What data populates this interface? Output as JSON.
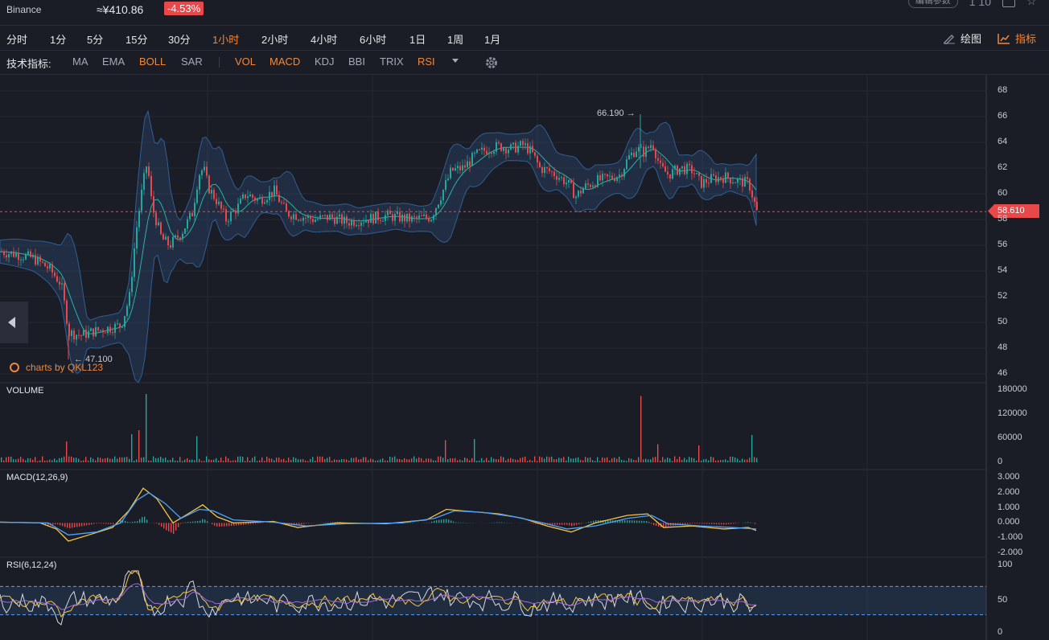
{
  "header": {
    "exchange": "Binance",
    "price": "≈¥410.86",
    "change": "-4.53%",
    "top_right_button": "编辑参数",
    "top_right_text": "1 10"
  },
  "timeframes": [
    {
      "label": "分时",
      "active": false
    },
    {
      "label": "1分",
      "active": false
    },
    {
      "label": "5分",
      "active": false
    },
    {
      "label": "15分",
      "active": false
    },
    {
      "label": "30分",
      "active": false
    },
    {
      "label": "1小时",
      "active": true
    },
    {
      "label": "2小时",
      "active": false
    },
    {
      "label": "4小时",
      "active": false
    },
    {
      "label": "6小时",
      "active": false
    },
    {
      "label": "1日",
      "active": false
    },
    {
      "label": "1周",
      "active": false
    },
    {
      "label": "1月",
      "active": false
    }
  ],
  "toolbar": {
    "draw_label": "绘图",
    "indicator_label": "指标"
  },
  "indicators": {
    "label": "技术指标:",
    "items": [
      {
        "label": "MA",
        "active": false
      },
      {
        "label": "EMA",
        "active": false
      },
      {
        "label": "BOLL",
        "active": true
      },
      {
        "label": "SAR",
        "active": false
      },
      {
        "label": "VOL",
        "active": true
      },
      {
        "label": "MACD",
        "active": true
      },
      {
        "label": "KDJ",
        "active": false
      },
      {
        "label": "BBI",
        "active": false
      },
      {
        "label": "TRIX",
        "active": false
      },
      {
        "label": "RSI",
        "active": true
      }
    ]
  },
  "icons": [
    "chevron-left-icon",
    "gear-icon",
    "pencil-icon",
    "line-chart-icon",
    "caret-down-icon",
    "watermark-logo-icon"
  ],
  "colors": {
    "accent": "#f0883c",
    "up": "#26a69a",
    "down": "#e9484a",
    "background": "#1b1d26"
  },
  "watermark": "charts by QKL123",
  "panels": {
    "volume": "VOLUME",
    "macd": "MACD(12,26,9)",
    "rsi": "RSI(6,12,24)"
  },
  "last_price": "58.610",
  "annotations": {
    "high": "66.190 →",
    "low": "← 47.100"
  },
  "chart_data": [
    {
      "type": "candlestick",
      "name": "price",
      "ylim": [
        46,
        68
      ],
      "yticks": [
        "68",
        "66",
        "64",
        "62",
        "60",
        "58",
        "56",
        "54",
        "52",
        "50",
        "48",
        "46"
      ],
      "high_marker": 66.19,
      "low_marker": 47.1,
      "last_price": 58.61,
      "indicator": "BOLL",
      "close_path": [
        [
          0,
          55.5
        ],
        [
          20,
          55.3
        ],
        [
          40,
          55.0
        ],
        [
          60,
          54.2
        ],
        [
          75,
          53.0
        ],
        [
          85,
          49.2
        ],
        [
          100,
          49.0
        ],
        [
          115,
          49.3
        ],
        [
          130,
          49.5
        ],
        [
          150,
          49.8
        ],
        [
          160,
          52.0
        ],
        [
          168,
          57.0
        ],
        [
          176,
          60.5
        ],
        [
          182,
          62.5
        ],
        [
          188,
          59.0
        ],
        [
          200,
          56.5
        ],
        [
          210,
          56.0
        ],
        [
          225,
          57.0
        ],
        [
          238,
          58.5
        ],
        [
          246,
          61.5
        ],
        [
          252,
          62.0
        ],
        [
          258,
          60.5
        ],
        [
          268,
          59.5
        ],
        [
          280,
          58.0
        ],
        [
          295,
          59.0
        ],
        [
          305,
          60.0
        ],
        [
          320,
          59.5
        ],
        [
          340,
          60.2
        ],
        [
          355,
          58.5
        ],
        [
          370,
          58.3
        ],
        [
          390,
          58.0
        ],
        [
          410,
          58.2
        ],
        [
          430,
          57.8
        ],
        [
          450,
          58.0
        ],
        [
          480,
          58.3
        ],
        [
          510,
          58.0
        ],
        [
          535,
          58.2
        ],
        [
          548,
          60.0
        ],
        [
          560,
          61.8
        ],
        [
          575,
          62.0
        ],
        [
          590,
          63.0
        ],
        [
          605,
          63.5
        ],
        [
          620,
          63.7
        ],
        [
          635,
          63.5
        ],
        [
          650,
          63.8
        ],
        [
          660,
          63.2
        ],
        [
          670,
          62.0
        ],
        [
          680,
          61.8
        ],
        [
          690,
          61.5
        ],
        [
          705,
          60.8
        ],
        [
          715,
          59.8
        ],
        [
          725,
          60.5
        ],
        [
          740,
          61.0
        ],
        [
          755,
          61.2
        ],
        [
          770,
          61.5
        ],
        [
          780,
          62.8
        ],
        [
          790,
          63.5
        ],
        [
          800,
          63.2
        ],
        [
          810,
          64.0
        ],
        [
          820,
          62.0
        ],
        [
          830,
          61.5
        ],
        [
          845,
          62.0
        ],
        [
          860,
          61.8
        ],
        [
          870,
          60.8
        ],
        [
          885,
          61.2
        ],
        [
          900,
          61.3
        ],
        [
          915,
          61.0
        ],
        [
          930,
          60.8
        ],
        [
          940,
          58.6
        ]
      ]
    },
    {
      "type": "bar",
      "name": "VOLUME",
      "ylim": [
        0,
        180000
      ],
      "yticks": [
        "180000",
        "120000",
        "60000",
        "0"
      ],
      "spikes": [
        [
          82,
          52000
        ],
        [
          164,
          70000
        ],
        [
          172,
          80000
        ],
        [
          180,
          170000
        ],
        [
          245,
          65000
        ],
        [
          552,
          55000
        ],
        [
          588,
          58000
        ],
        [
          796,
          165000
        ],
        [
          816,
          45000
        ],
        [
          868,
          42000
        ],
        [
          934,
          68000
        ]
      ]
    },
    {
      "type": "line",
      "name": "MACD(12,26,9)",
      "ylim": [
        -2.0,
        3.0
      ],
      "yticks": [
        "3.000",
        "2.000",
        "1.000",
        "0.000",
        "-1.000",
        "-2.000"
      ],
      "dif": [
        [
          0,
          0.05
        ],
        [
          50,
          0.0
        ],
        [
          70,
          -0.4
        ],
        [
          85,
          -1.2
        ],
        [
          110,
          -0.8
        ],
        [
          140,
          -0.3
        ],
        [
          160,
          0.8
        ],
        [
          178,
          2.3
        ],
        [
          195,
          1.6
        ],
        [
          215,
          0.0
        ],
        [
          240,
          0.8
        ],
        [
          252,
          1.2
        ],
        [
          270,
          0.4
        ],
        [
          290,
          0.0
        ],
        [
          340,
          0.1
        ],
        [
          370,
          -0.3
        ],
        [
          420,
          0.0
        ],
        [
          480,
          -0.05
        ],
        [
          530,
          0.2
        ],
        [
          555,
          0.9
        ],
        [
          575,
          0.8
        ],
        [
          620,
          0.6
        ],
        [
          650,
          0.3
        ],
        [
          680,
          -0.2
        ],
        [
          710,
          -0.6
        ],
        [
          740,
          0.0
        ],
        [
          780,
          0.5
        ],
        [
          805,
          0.6
        ],
        [
          825,
          -0.3
        ],
        [
          860,
          -0.2
        ],
        [
          900,
          -0.4
        ],
        [
          930,
          -0.3
        ],
        [
          940,
          -0.5
        ]
      ],
      "dea": [
        [
          0,
          0.05
        ],
        [
          60,
          0.0
        ],
        [
          85,
          -0.8
        ],
        [
          120,
          -0.6
        ],
        [
          150,
          0.0
        ],
        [
          170,
          1.5
        ],
        [
          185,
          2.0
        ],
        [
          205,
          1.3
        ],
        [
          225,
          0.3
        ],
        [
          248,
          0.9
        ],
        [
          265,
          0.8
        ],
        [
          290,
          0.2
        ],
        [
          340,
          0.05
        ],
        [
          380,
          -0.2
        ],
        [
          430,
          -0.05
        ],
        [
          500,
          0.0
        ],
        [
          540,
          0.3
        ],
        [
          565,
          0.8
        ],
        [
          600,
          0.7
        ],
        [
          640,
          0.4
        ],
        [
          675,
          0.0
        ],
        [
          705,
          -0.4
        ],
        [
          740,
          -0.2
        ],
        [
          780,
          0.3
        ],
        [
          810,
          0.5
        ],
        [
          830,
          -0.05
        ],
        [
          870,
          -0.2
        ],
        [
          910,
          -0.3
        ],
        [
          940,
          -0.4
        ]
      ]
    },
    {
      "type": "line",
      "name": "RSI(6,12,24)",
      "ylim": [
        0,
        100
      ],
      "yticks": [
        "100",
        "50",
        "0"
      ],
      "bands": [
        70,
        30
      ]
    }
  ]
}
